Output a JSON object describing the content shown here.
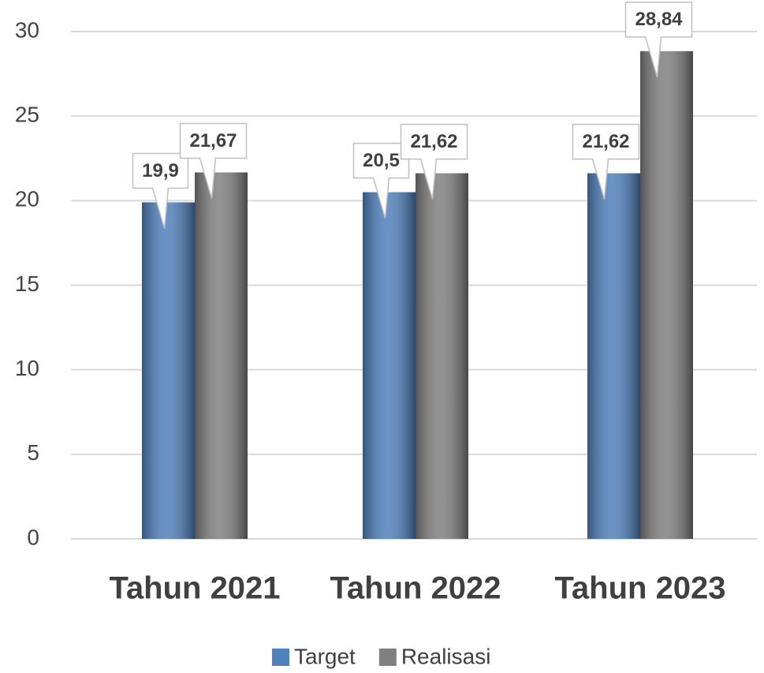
{
  "chart_data": {
    "type": "bar",
    "categories": [
      "Tahun 2021",
      "Tahun 2022",
      "Tahun 2023"
    ],
    "series": [
      {
        "name": "Target",
        "color": "#4f81bd",
        "values": [
          19.9,
          20.5,
          21.62
        ],
        "value_labels": [
          "19,9",
          "20,5",
          "21,62"
        ]
      },
      {
        "name": "Realisasi",
        "color": "#808080",
        "values": [
          21.67,
          21.62,
          28.84
        ],
        "value_labels": [
          "21,67",
          "21,62",
          "28,84"
        ]
      }
    ],
    "ylim": [
      0,
      30
    ],
    "yticks": [
      0,
      5,
      10,
      15,
      20,
      25,
      30
    ],
    "grid": true,
    "legend": "bottom"
  }
}
